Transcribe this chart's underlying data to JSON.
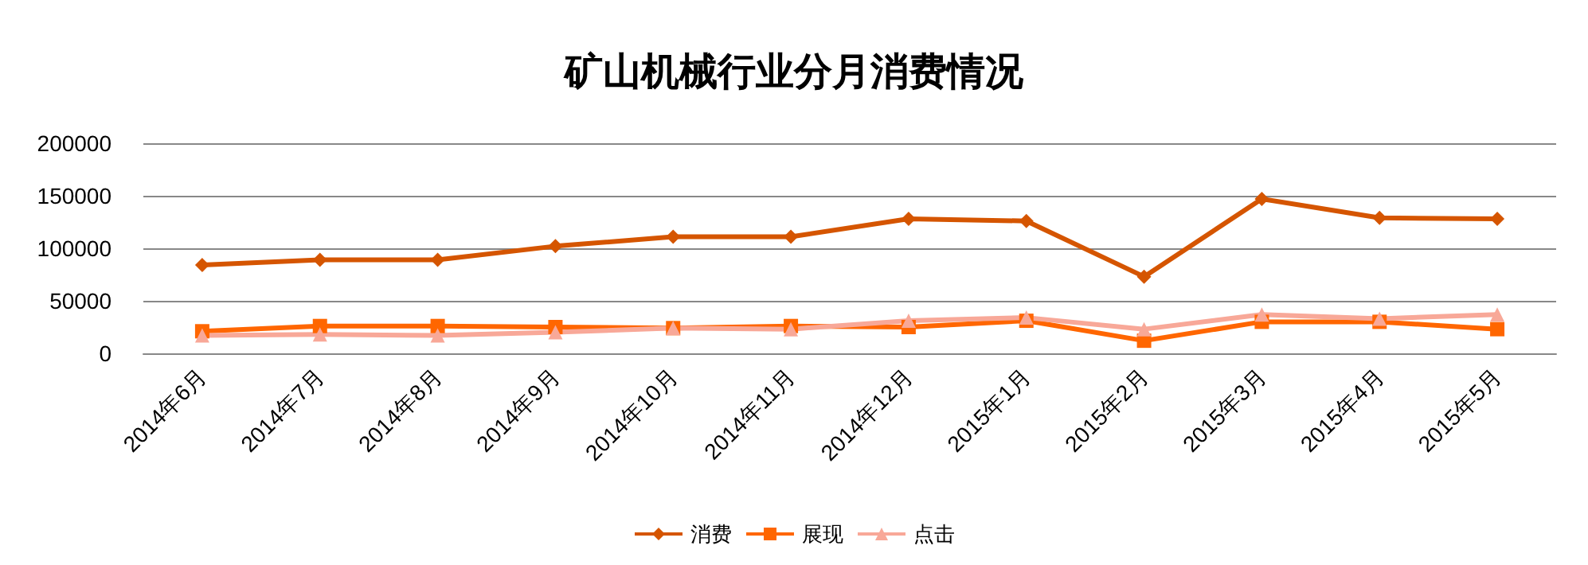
{
  "chart_data": {
    "type": "line",
    "title": "矿山机械行业分月消费情况",
    "categories": [
      "2014年6月",
      "2014年7月",
      "2014年8月",
      "2014年9月",
      "2014年10月",
      "2014年11月",
      "2014年12月",
      "2015年1月",
      "2015年2月",
      "2015年3月",
      "2015年4月",
      "2015年5月"
    ],
    "series": [
      {
        "name": "消费",
        "color": "#d55500",
        "marker": "diamond",
        "values": [
          84000,
          89000,
          89000,
          102000,
          111000,
          111000,
          128000,
          126000,
          73000,
          147000,
          129000,
          128000
        ]
      },
      {
        "name": "展现",
        "color": "#ff6600",
        "marker": "square",
        "values": [
          21000,
          26000,
          26000,
          25000,
          24000,
          26000,
          25000,
          31000,
          12000,
          30000,
          30000,
          23000
        ]
      },
      {
        "name": "点击",
        "color": "#f8a898",
        "marker": "triangle",
        "values": [
          17000,
          18000,
          17000,
          20000,
          24000,
          23000,
          31000,
          34000,
          23000,
          37000,
          33000,
          37000
        ]
      }
    ],
    "ylim": [
      0,
      200000
    ],
    "yticks": [
      0,
      50000,
      100000,
      150000,
      200000
    ],
    "grid": "y",
    "legend": "bottom"
  }
}
